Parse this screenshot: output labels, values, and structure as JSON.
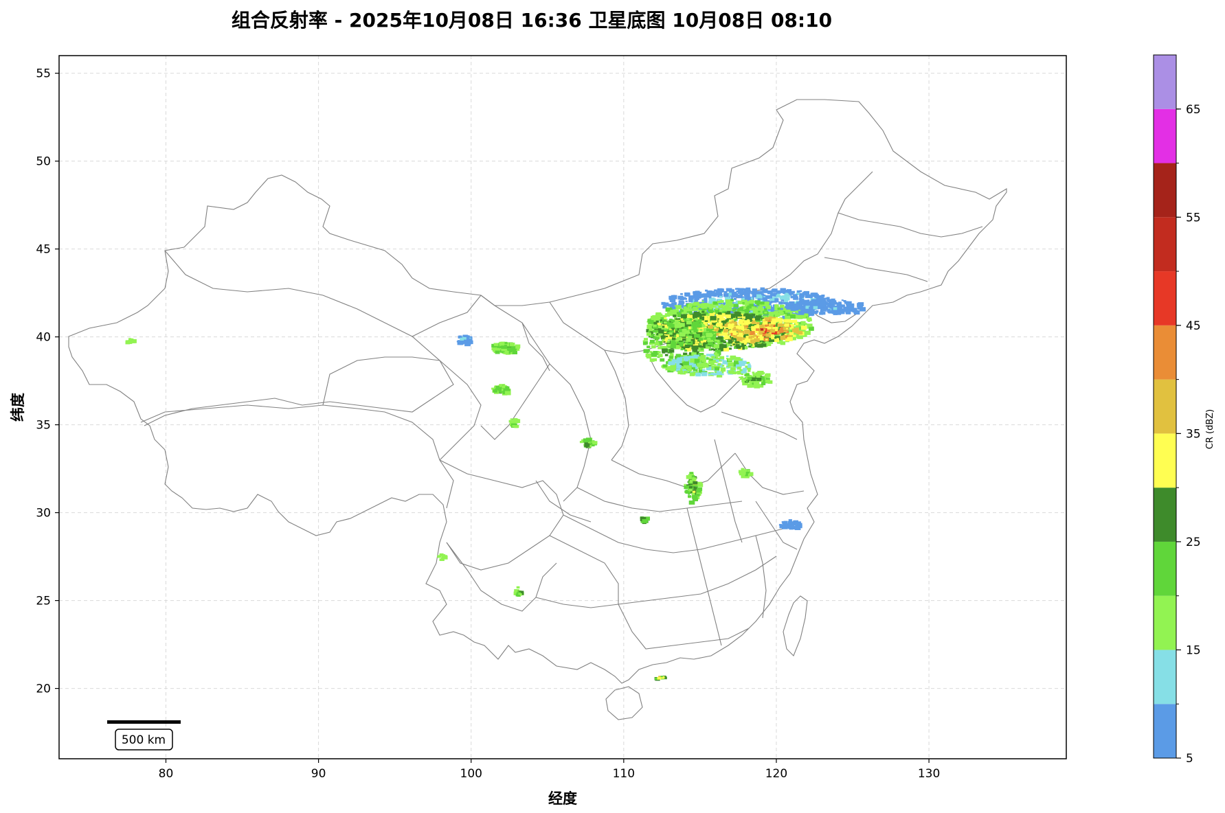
{
  "title": "组合反射率 - 2025年10月08日 16:36 卫星底图 10月08日 08:10",
  "map": {
    "xlabel": "经度",
    "ylabel": "纬度",
    "xlim": [
      73,
      139
    ],
    "ylim": [
      16,
      56
    ],
    "xticks": [
      80,
      90,
      100,
      110,
      120,
      130
    ],
    "yticks": [
      20,
      25,
      30,
      35,
      40,
      45,
      50,
      55
    ],
    "grid": true,
    "scale_bar_label": "500 km",
    "basemap_line_color": "#808080"
  },
  "colorbar": {
    "title": "CR (dBZ)",
    "tick_labels": [
      "5",
      "15",
      "25",
      "35",
      "45",
      "55",
      "65"
    ],
    "ticks": [
      5,
      15,
      25,
      35,
      45,
      55,
      65
    ],
    "range": [
      5,
      70
    ],
    "levels": [
      {
        "from": 5,
        "to": 10,
        "color": "#5b9be6"
      },
      {
        "from": 10,
        "to": 15,
        "color": "#86dfe6"
      },
      {
        "from": 15,
        "to": 20,
        "color": "#92f352"
      },
      {
        "from": 20,
        "to": 25,
        "color": "#60d63a"
      },
      {
        "from": 25,
        "to": 30,
        "color": "#3e8b2b"
      },
      {
        "from": 30,
        "to": 35,
        "color": "#fffe52"
      },
      {
        "from": 35,
        "to": 40,
        "color": "#e1c13f"
      },
      {
        "from": 40,
        "to": 45,
        "color": "#ea8d36"
      },
      {
        "from": 45,
        "to": 50,
        "color": "#e73826"
      },
      {
        "from": 50,
        "to": 55,
        "color": "#c22c1f"
      },
      {
        "from": 55,
        "to": 60,
        "color": "#a5231a"
      },
      {
        "from": 60,
        "to": 65,
        "color": "#e32fe5"
      },
      {
        "from": 65,
        "to": 70,
        "color": "#ab8fe5"
      }
    ]
  }
}
